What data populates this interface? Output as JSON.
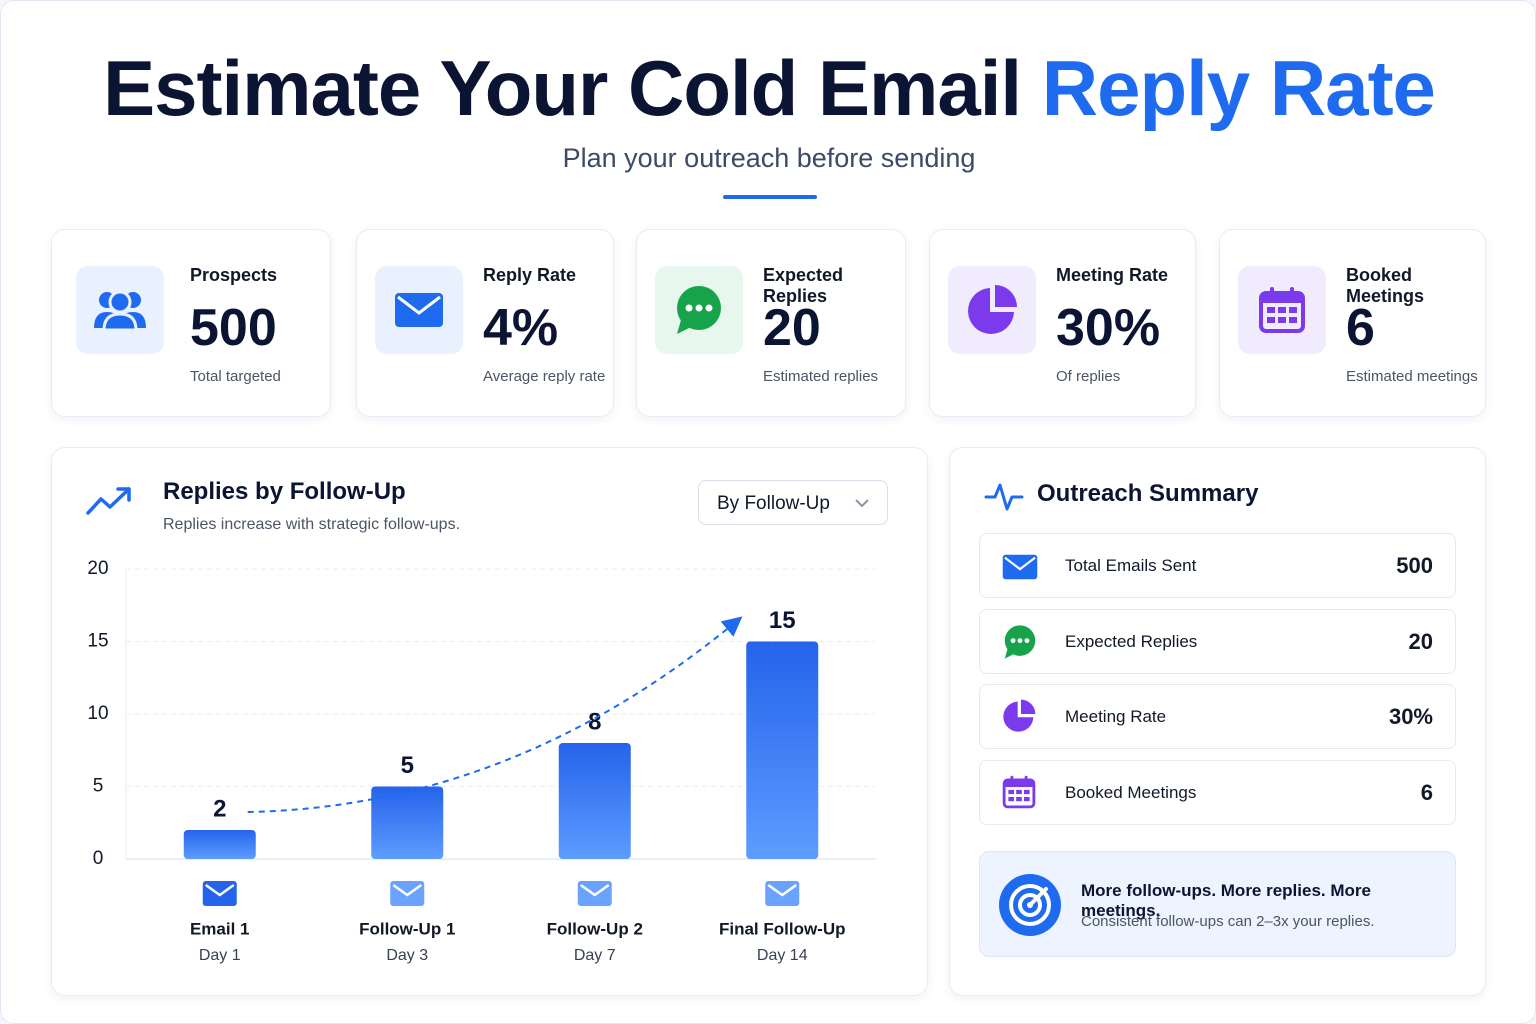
{
  "header": {
    "title_main": "Estimate Your Cold Email",
    "title_accent": "Reply Rate",
    "subtitle": "Plan your outreach before sending"
  },
  "stats": [
    {
      "label": "Prospects",
      "value": "500",
      "caption": "Total targeted"
    },
    {
      "label": "Reply Rate",
      "value": "4%",
      "caption": "Average reply rate"
    },
    {
      "label": "Expected Replies",
      "value": "20",
      "caption": "Estimated replies"
    },
    {
      "label": "Meeting Rate",
      "value": "30%",
      "caption": "Of replies"
    },
    {
      "label": "Booked Meetings",
      "value": "6",
      "caption": "Estimated meetings"
    }
  ],
  "chart_data": {
    "type": "bar",
    "title": "Replies by Follow-Up",
    "subtitle": "Replies increase with strategic follow-ups.",
    "filter": "By Follow-Up",
    "categories": [
      "Email 1",
      "Follow-Up 1",
      "Follow-Up 2",
      "Final Follow-Up"
    ],
    "sublabels": [
      "Day 1",
      "Day 3",
      "Day 7",
      "Day 14"
    ],
    "values": [
      2,
      5,
      8,
      15
    ],
    "color": "#2563eb",
    "ylim": [
      0,
      20
    ],
    "yticks": [
      0,
      5,
      10,
      15,
      20
    ],
    "grid": true
  },
  "summary": {
    "title": "Outreach Summary",
    "rows": [
      {
        "label": "Total Emails Sent",
        "value": "500"
      },
      {
        "label": "Expected Replies",
        "value": "20"
      },
      {
        "label": "Meeting Rate",
        "value": "30%"
      },
      {
        "label": "Booked Meetings",
        "value": "6"
      }
    ]
  },
  "callout": {
    "title": "More follow-ups. More replies. More meetings.",
    "text": "Consistent follow-ups can 2–3x your replies."
  }
}
